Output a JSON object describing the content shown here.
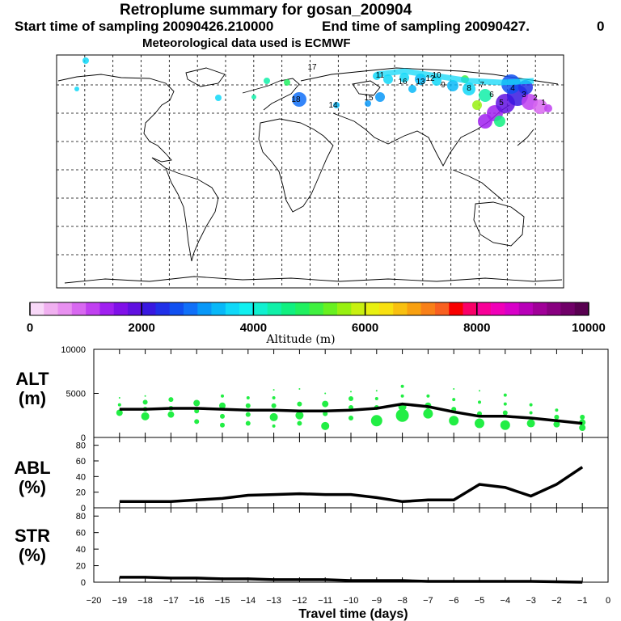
{
  "header": {
    "title": "Retroplume summary for gosan_200904",
    "start": "Start time of sampling 20090426.210000",
    "end": "End time of sampling 20090427.",
    "end_tail": "0",
    "met": "Meteorological data used is ECMWF"
  },
  "colorbar": {
    "title": "Altitude (m)",
    "labels": [
      "0",
      "2000",
      "4000",
      "6000",
      "8000",
      "10000"
    ],
    "colors": [
      "#f8d8f8",
      "#f0b0f0",
      "#e890f0",
      "#d868f0",
      "#c040f0",
      "#a020f0",
      "#8010e8",
      "#6010e0",
      "#3818e0",
      "#2030e8",
      "#1050f0",
      "#1070f8",
      "#0898f8",
      "#08b8f8",
      "#10d8f8",
      "#10f0f0",
      "#10f0d0",
      "#10f0a8",
      "#10f080",
      "#20f060",
      "#40f040",
      "#68f020",
      "#98f010",
      "#c8f010",
      "#e8f010",
      "#f8e010",
      "#f8c010",
      "#f8a010",
      "#f88018",
      "#f86020",
      "#f80000",
      "#f80068",
      "#f80098",
      "#f000b8",
      "#d800c8",
      "#b800b8",
      "#a00098",
      "#880080",
      "#700068",
      "#580050"
    ]
  },
  "map": {
    "labels": [
      "18",
      "17",
      "16",
      "15",
      "14",
      "13",
      "12",
      "11",
      "10",
      "9",
      "8",
      "7",
      "6",
      "5",
      "4",
      "3",
      "2",
      "1"
    ]
  },
  "panels": {
    "alt_label": [
      "ALT",
      "(m)"
    ],
    "abl_label": [
      "ABL",
      "(%)"
    ],
    "str_label": [
      "STR",
      "(%)"
    ],
    "alt_ticks": [
      "10000",
      "5000",
      "0"
    ],
    "pct_ticks": [
      "80",
      "60",
      "40",
      "20",
      "0"
    ],
    "x_ticks": [
      "−20",
      "−19",
      "−18",
      "−17",
      "−16",
      "−15",
      "−14",
      "−13",
      "−12",
      "−11",
      "−10",
      "−9",
      "−8",
      "−7",
      "−6",
      "−5",
      "−4",
      "−3",
      "−2",
      "−1",
      "0"
    ],
    "x_label": "Travel time (days)"
  },
  "chart_data": [
    {
      "type": "line",
      "title": "ALT (m)",
      "xlabel": "Travel time (days)",
      "ylabel": "ALT (m)",
      "xlim": [
        -20,
        0
      ],
      "ylim": [
        0,
        10000
      ],
      "x": [
        -19,
        -18,
        -17,
        -16,
        -15,
        -14,
        -13,
        -12,
        -11,
        -10,
        -9,
        -8,
        -7,
        -6,
        -5,
        -4,
        -3,
        -2,
        -1
      ],
      "values": [
        3200,
        3200,
        3300,
        3300,
        3200,
        3100,
        3100,
        3000,
        3000,
        3100,
        3300,
        3800,
        3500,
        2900,
        2400,
        2400,
        2200,
        1900,
        1600
      ],
      "scatter_series": {
        "color": "#22ee44",
        "points": [
          {
            "x": -19,
            "y": 2800,
            "r": 4
          },
          {
            "x": -19,
            "y": 3700,
            "r": 2
          },
          {
            "x": -19,
            "y": 4500,
            "r": 1
          },
          {
            "x": -18,
            "y": 2400,
            "r": 5
          },
          {
            "x": -18,
            "y": 3200,
            "r": 3
          },
          {
            "x": -18,
            "y": 4000,
            "r": 3
          },
          {
            "x": -18,
            "y": 4700,
            "r": 1
          },
          {
            "x": -17,
            "y": 2600,
            "r": 4
          },
          {
            "x": -17,
            "y": 3300,
            "r": 3
          },
          {
            "x": -17,
            "y": 4300,
            "r": 3
          },
          {
            "x": -16,
            "y": 1800,
            "r": 3
          },
          {
            "x": -16,
            "y": 3000,
            "r": 3
          },
          {
            "x": -16,
            "y": 3900,
            "r": 4
          },
          {
            "x": -15,
            "y": 1400,
            "r": 3
          },
          {
            "x": -15,
            "y": 2400,
            "r": 3
          },
          {
            "x": -15,
            "y": 3600,
            "r": 4
          },
          {
            "x": -15,
            "y": 4700,
            "r": 2
          },
          {
            "x": -14,
            "y": 1600,
            "r": 3
          },
          {
            "x": -14,
            "y": 2600,
            "r": 3
          },
          {
            "x": -14,
            "y": 3600,
            "r": 3
          },
          {
            "x": -14,
            "y": 4500,
            "r": 2
          },
          {
            "x": -13,
            "y": 1300,
            "r": 2
          },
          {
            "x": -13,
            "y": 2300,
            "r": 5
          },
          {
            "x": -13,
            "y": 3600,
            "r": 3
          },
          {
            "x": -13,
            "y": 4500,
            "r": 2
          },
          {
            "x": -13,
            "y": 5400,
            "r": 1
          },
          {
            "x": -12,
            "y": 1600,
            "r": 3
          },
          {
            "x": -12,
            "y": 2500,
            "r": 5
          },
          {
            "x": -12,
            "y": 3800,
            "r": 3
          },
          {
            "x": -12,
            "y": 5500,
            "r": 1
          },
          {
            "x": -11,
            "y": 1300,
            "r": 5
          },
          {
            "x": -11,
            "y": 2700,
            "r": 3
          },
          {
            "x": -11,
            "y": 3800,
            "r": 4
          },
          {
            "x": -11,
            "y": 5000,
            "r": 1
          },
          {
            "x": -10,
            "y": 2200,
            "r": 3
          },
          {
            "x": -10,
            "y": 3400,
            "r": 3
          },
          {
            "x": -10,
            "y": 4400,
            "r": 3
          },
          {
            "x": -10,
            "y": 5200,
            "r": 1
          },
          {
            "x": -9,
            "y": 1900,
            "r": 7
          },
          {
            "x": -9,
            "y": 3400,
            "r": 3
          },
          {
            "x": -9,
            "y": 4400,
            "r": 2
          },
          {
            "x": -9,
            "y": 5300,
            "r": 1
          },
          {
            "x": -8,
            "y": 2500,
            "r": 8
          },
          {
            "x": -8,
            "y": 3500,
            "r": 5
          },
          {
            "x": -8,
            "y": 4700,
            "r": 2
          },
          {
            "x": -8,
            "y": 5800,
            "r": 2
          },
          {
            "x": -7,
            "y": 2700,
            "r": 6
          },
          {
            "x": -7,
            "y": 3600,
            "r": 4
          },
          {
            "x": -7,
            "y": 4700,
            "r": 2
          },
          {
            "x": -6,
            "y": 1900,
            "r": 6
          },
          {
            "x": -6,
            "y": 3200,
            "r": 3
          },
          {
            "x": -6,
            "y": 4300,
            "r": 2
          },
          {
            "x": -6,
            "y": 5500,
            "r": 1
          },
          {
            "x": -5,
            "y": 1600,
            "r": 6
          },
          {
            "x": -5,
            "y": 2700,
            "r": 3
          },
          {
            "x": -5,
            "y": 4000,
            "r": 2
          },
          {
            "x": -5,
            "y": 5300,
            "r": 1
          },
          {
            "x": -4,
            "y": 1400,
            "r": 6
          },
          {
            "x": -4,
            "y": 2800,
            "r": 3
          },
          {
            "x": -4,
            "y": 3800,
            "r": 2
          },
          {
            "x": -4,
            "y": 4800,
            "r": 2
          },
          {
            "x": -3,
            "y": 1600,
            "r": 5
          },
          {
            "x": -3,
            "y": 2800,
            "r": 2
          },
          {
            "x": -3,
            "y": 3700,
            "r": 2
          },
          {
            "x": -2,
            "y": 1500,
            "r": 4
          },
          {
            "x": -2,
            "y": 2300,
            "r": 3
          },
          {
            "x": -2,
            "y": 3100,
            "r": 2
          },
          {
            "x": -1,
            "y": 1100,
            "r": 4
          },
          {
            "x": -1,
            "y": 1700,
            "r": 4
          },
          {
            "x": -1,
            "y": 2300,
            "r": 3
          }
        ]
      }
    },
    {
      "type": "line",
      "title": "ABL (%)",
      "ylabel": "ABL (%)",
      "xlim": [
        -20,
        0
      ],
      "ylim": [
        0,
        90
      ],
      "x": [
        -19,
        -18,
        -17,
        -16,
        -15,
        -14,
        -13,
        -12,
        -11,
        -10,
        -9,
        -8,
        -7,
        -6,
        -5,
        -4,
        -3,
        -2,
        -1
      ],
      "values": [
        8,
        8,
        8,
        10,
        12,
        16,
        17,
        18,
        17,
        17,
        13,
        8,
        10,
        10,
        30,
        26,
        15,
        30,
        52
      ]
    },
    {
      "type": "line",
      "title": "STR (%)",
      "ylabel": "STR (%)",
      "xlim": [
        -20,
        0
      ],
      "ylim": [
        0,
        90
      ],
      "x": [
        -19,
        -18,
        -17,
        -16,
        -15,
        -14,
        -13,
        -12,
        -11,
        -10,
        -9,
        -8,
        -7,
        -6,
        -5,
        -4,
        -3,
        -2,
        -1
      ],
      "values": [
        6,
        6,
        5,
        5,
        4,
        4,
        3,
        3,
        3,
        2,
        2,
        2,
        1,
        1,
        1,
        1,
        1,
        0.5,
        0
      ]
    }
  ]
}
